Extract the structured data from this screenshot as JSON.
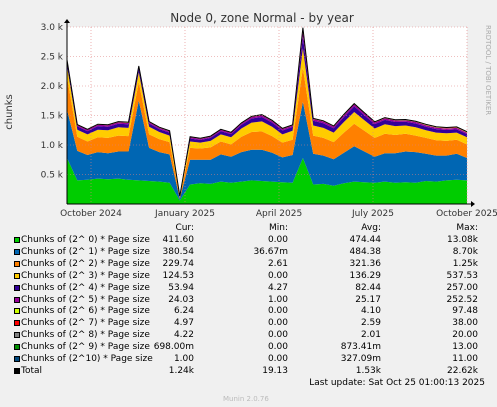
{
  "chart_data": {
    "type": "area",
    "title": "Node 0, zone Normal - by year",
    "ylabel": "chunks",
    "yticks": [
      "0.5 k",
      "1.0 k",
      "1.5 k",
      "2.0 k",
      "2.5 k",
      "3.0 k"
    ],
    "ytick_values": [
      500,
      1000,
      1500,
      2000,
      2500,
      3000
    ],
    "ylim": [
      0,
      3000
    ],
    "xticks": [
      "October 2024",
      "January 2025",
      "April 2025",
      "July 2025",
      "October 2025"
    ],
    "grid": true,
    "side_label": "RRDTOOL / TOBI OETIKER",
    "series": [
      {
        "name": "Chunks of (2^ 0) * Page size",
        "color": "#00cc00",
        "values": [
          780,
          400,
          410,
          430,
          420,
          430,
          410,
          400,
          390,
          380,
          360,
          60,
          330,
          350,
          340,
          380,
          360,
          380,
          400,
          390,
          380,
          370,
          360,
          780,
          330,
          340,
          310,
          350,
          380,
          370,
          360,
          380,
          360,
          370,
          360,
          390,
          380,
          400,
          410,
          400
        ]
      },
      {
        "name": "Chunks of (2^ 1) * Page size",
        "color": "#0066b3",
        "values": [
          820,
          500,
          420,
          450,
          440,
          460,
          480,
          1350,
          560,
          500,
          480,
          30,
          420,
          400,
          410,
          460,
          440,
          500,
          520,
          530,
          490,
          420,
          470,
          950,
          520,
          480,
          450,
          520,
          600,
          520,
          440,
          480,
          500,
          520,
          520,
          460,
          440,
          420,
          440,
          380
        ]
      },
      {
        "name": "Chunks of (2^ 2) * Page size",
        "color": "#ff8000",
        "values": [
          560,
          240,
          230,
          250,
          260,
          270,
          260,
          320,
          230,
          220,
          210,
          20,
          200,
          190,
          210,
          220,
          210,
          260,
          300,
          310,
          280,
          250,
          260,
          580,
          310,
          300,
          290,
          340,
          380,
          350,
          320,
          330,
          310,
          300,
          280,
          270,
          260,
          250,
          240,
          230
        ]
      },
      {
        "name": "Chunks of (2^ 3) * Page size",
        "color": "#ffcc00",
        "values": [
          180,
          120,
          120,
          130,
          130,
          140,
          140,
          160,
          130,
          120,
          110,
          10,
          110,
          100,
          110,
          120,
          120,
          140,
          160,
          170,
          160,
          140,
          150,
          330,
          170,
          170,
          160,
          180,
          200,
          180,
          160,
          160,
          150,
          140,
          140,
          130,
          130,
          130,
          120,
          120
        ]
      },
      {
        "name": "Chunks of (2^ 4) * Page size",
        "color": "#330099",
        "values": [
          70,
          55,
          55,
          60,
          60,
          60,
          60,
          70,
          55,
          50,
          50,
          8,
          50,
          45,
          50,
          55,
          55,
          60,
          70,
          75,
          70,
          65,
          65,
          200,
          80,
          80,
          75,
          85,
          95,
          85,
          75,
          75,
          70,
          65,
          65,
          60,
          60,
          55,
          55,
          54
        ]
      },
      {
        "name": "Chunks of (2^ 5) * Page size",
        "color": "#990099",
        "values": [
          25,
          22,
          22,
          24,
          24,
          25,
          25,
          28,
          23,
          22,
          21,
          4,
          21,
          20,
          21,
          22,
          22,
          24,
          26,
          28,
          27,
          26,
          26,
          90,
          30,
          30,
          28,
          32,
          34,
          32,
          28,
          28,
          27,
          26,
          26,
          25,
          25,
          24,
          24,
          24
        ]
      },
      {
        "name": "Chunks of (2^ 6) * Page size",
        "color": "#ccff00",
        "values": [
          5,
          4,
          4,
          4,
          4,
          5,
          5,
          5,
          4,
          4,
          4,
          1,
          4,
          4,
          4,
          4,
          4,
          4,
          5,
          5,
          5,
          4,
          4,
          30,
          5,
          5,
          5,
          5,
          6,
          5,
          5,
          5,
          5,
          5,
          5,
          6,
          6,
          6,
          6,
          6
        ]
      },
      {
        "name": "Chunks of (2^ 7) * Page size",
        "color": "#ff0000",
        "values": [
          3,
          2,
          2,
          2,
          3,
          3,
          3,
          3,
          2,
          2,
          2,
          0,
          2,
          2,
          2,
          2,
          2,
          3,
          3,
          3,
          3,
          3,
          3,
          12,
          3,
          3,
          3,
          3,
          4,
          3,
          3,
          3,
          3,
          3,
          3,
          4,
          4,
          5,
          5,
          5
        ]
      },
      {
        "name": "Chunks of (2^ 8) * Page size",
        "color": "#808080",
        "values": [
          2,
          2,
          2,
          2,
          2,
          2,
          2,
          2,
          2,
          2,
          2,
          0,
          2,
          2,
          2,
          2,
          2,
          2,
          2,
          2,
          2,
          2,
          2,
          8,
          2,
          2,
          2,
          2,
          2,
          2,
          2,
          2,
          2,
          2,
          2,
          3,
          3,
          4,
          4,
          4
        ]
      },
      {
        "name": "Chunks of (2^ 9) * Page size",
        "color": "#008f00",
        "values": [
          1,
          1,
          1,
          1,
          1,
          1,
          1,
          1,
          1,
          1,
          1,
          0,
          1,
          1,
          1,
          1,
          1,
          1,
          1,
          1,
          1,
          1,
          1,
          5,
          1,
          1,
          1,
          1,
          1,
          1,
          1,
          1,
          1,
          1,
          1,
          1,
          1,
          1,
          1,
          1
        ]
      },
      {
        "name": "Chunks of (2^10) * Page size",
        "color": "#00487d",
        "values": [
          0,
          0,
          0,
          0,
          0,
          0,
          0,
          0,
          0,
          0,
          0,
          0,
          0,
          0,
          0,
          0,
          0,
          0,
          0,
          0,
          0,
          0,
          0,
          3,
          0,
          0,
          0,
          0,
          0,
          0,
          0,
          0,
          0,
          0,
          0,
          1,
          1,
          1,
          1,
          1
        ]
      }
    ]
  },
  "legend": {
    "headers": {
      "cur": "Cur:",
      "min": "Min:",
      "avg": "Avg:",
      "max": "Max:"
    },
    "rows": [
      {
        "label": "Chunks of (2^ 0) * Page size",
        "color": "#00cc00",
        "cur": "411.60",
        "min": "0.00",
        "avg": "474.44",
        "max": "13.08k"
      },
      {
        "label": "Chunks of (2^ 1) * Page size",
        "color": "#0066b3",
        "cur": "380.54",
        "min": "36.67m",
        "avg": "484.38",
        "max": "8.70k"
      },
      {
        "label": "Chunks of (2^ 2) * Page size",
        "color": "#ff8000",
        "cur": "229.74",
        "min": "2.61",
        "avg": "321.36",
        "max": "1.25k"
      },
      {
        "label": "Chunks of (2^ 3) * Page size",
        "color": "#ffcc00",
        "cur": "124.53",
        "min": "0.00",
        "avg": "136.29",
        "max": "537.53"
      },
      {
        "label": "Chunks of (2^ 4) * Page size",
        "color": "#330099",
        "cur": "53.94",
        "min": "4.27",
        "avg": "82.44",
        "max": "257.00"
      },
      {
        "label": "Chunks of (2^ 5) * Page size",
        "color": "#990099",
        "cur": "24.03",
        "min": "1.00",
        "avg": "25.17",
        "max": "252.52"
      },
      {
        "label": "Chunks of (2^ 6) * Page size",
        "color": "#ccff00",
        "cur": "6.24",
        "min": "0.00",
        "avg": "4.10",
        "max": "97.48"
      },
      {
        "label": "Chunks of (2^ 7) * Page size",
        "color": "#ff0000",
        "cur": "4.97",
        "min": "0.00",
        "avg": "2.59",
        "max": "38.00"
      },
      {
        "label": "Chunks of (2^ 8) * Page size",
        "color": "#808080",
        "cur": "4.22",
        "min": "0.00",
        "avg": "2.01",
        "max": "20.00"
      },
      {
        "label": "Chunks of (2^ 9) * Page size",
        "color": "#008f00",
        "cur": "698.00m",
        "min": "0.00",
        "avg": "873.41m",
        "max": "13.00"
      },
      {
        "label": "Chunks of (2^10) * Page size",
        "color": "#00487d",
        "cur": "1.00",
        "min": "0.00",
        "avg": "327.09m",
        "max": "11.00"
      },
      {
        "label": "Total",
        "color": "#000000",
        "cur": "1.24k",
        "min": "19.13",
        "avg": "1.53k",
        "max": "22.62k"
      }
    ]
  },
  "last_update": "Last update: Sat Oct 25 01:00:13 2025",
  "generator": "Munin 2.0.76"
}
